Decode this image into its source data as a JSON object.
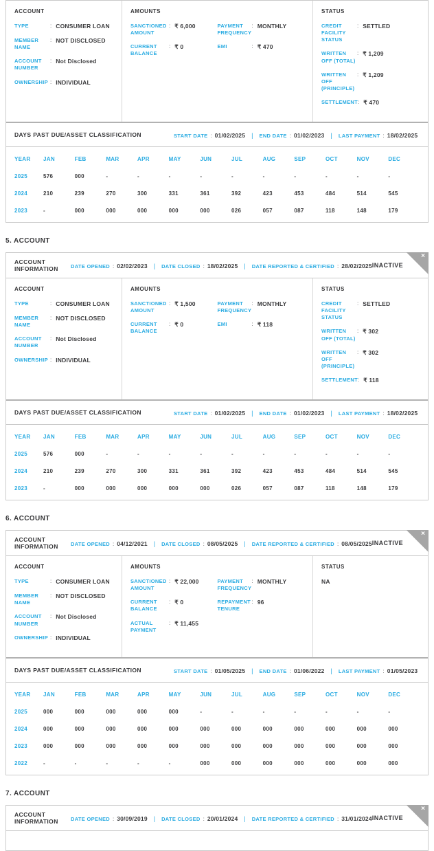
{
  "colors": {
    "accent": "#29abe2",
    "text": "#3b3b3d",
    "ribbon": "#a6a6a6"
  },
  "labels": {
    "account_information": "ACCOUNT INFORMATION",
    "account": "ACCOUNT",
    "amounts": "AMOUNTS",
    "status": "STATUS",
    "dpd_title": "DAYS PAST DUE/ASSET CLASSIFICATION",
    "year": "YEAR",
    "close_icon": "×"
  },
  "months": [
    "JAN",
    "FEB",
    "MAR",
    "APR",
    "MAY",
    "JUN",
    "JUL",
    "AUG",
    "SEP",
    "OCT",
    "NOV",
    "DEC"
  ],
  "cards": [
    {
      "account_fields": [
        {
          "label": "TYPE",
          "value": "CONSUMER LOAN"
        },
        {
          "label": "MEMBER NAME",
          "value": "NOT DISCLOSED"
        },
        {
          "label": "ACCOUNT NUMBER",
          "value": "Not Disclosed"
        },
        {
          "label": "OWNERSHIP",
          "value": "INDIVIDUAL"
        }
      ],
      "amounts_left": [
        {
          "label": "SANCTIONED AMOUNT",
          "value": "₹ 6,000"
        },
        {
          "label": "CURRENT BALANCE",
          "value": "₹ 0"
        }
      ],
      "amounts_right": [
        {
          "label": "PAYMENT FREQUENCY",
          "value": "MONTHLY"
        },
        {
          "label": "EMI",
          "value": "₹ 470"
        }
      ],
      "status_fields": [
        {
          "label": "CREDIT FACILITY STATUS",
          "value": "SETTLED"
        },
        {
          "label": "WRITTEN OFF (TOTAL)",
          "value": "₹ 1,209"
        },
        {
          "label": "WRITTEN OFF (PRINCIPLE)",
          "value": "₹ 1,209"
        },
        {
          "label": "SETTLEMENT",
          "value": "₹ 470"
        }
      ],
      "dpd_dates": [
        {
          "label": "START DATE",
          "value": "01/02/2025"
        },
        {
          "label": "END DATE",
          "value": "01/02/2023"
        },
        {
          "label": "LAST PAYMENT",
          "value": "18/02/2025"
        }
      ],
      "dpd_rows": [
        {
          "year": "2025",
          "values": [
            "576",
            "000",
            "-",
            "-",
            "-",
            "-",
            "-",
            "-",
            "-",
            "-",
            "-",
            "-"
          ]
        },
        {
          "year": "2024",
          "values": [
            "210",
            "239",
            "270",
            "300",
            "331",
            "361",
            "392",
            "423",
            "453",
            "484",
            "514",
            "545"
          ]
        },
        {
          "year": "2023",
          "values": [
            "-",
            "000",
            "000",
            "000",
            "000",
            "000",
            "026",
            "057",
            "087",
            "118",
            "148",
            "179"
          ]
        }
      ]
    },
    {
      "title": "5. ACCOUNT",
      "badge": "INACTIVE",
      "header_dates": [
        {
          "label": "DATE OPENED",
          "value": "02/02/2023"
        },
        {
          "label": "DATE CLOSED",
          "value": "18/02/2025"
        },
        {
          "label": "DATE REPORTED & CERTIFIED",
          "value": "28/02/2025"
        }
      ],
      "account_fields": [
        {
          "label": "TYPE",
          "value": "CONSUMER LOAN"
        },
        {
          "label": "MEMBER NAME",
          "value": "NOT DISCLOSED"
        },
        {
          "label": "ACCOUNT NUMBER",
          "value": "Not Disclosed"
        },
        {
          "label": "OWNERSHIP",
          "value": "INDIVIDUAL"
        }
      ],
      "amounts_left": [
        {
          "label": "SANCTIONED AMOUNT",
          "value": "₹ 1,500"
        },
        {
          "label": "CURRENT BALANCE",
          "value": "₹ 0"
        }
      ],
      "amounts_right": [
        {
          "label": "PAYMENT FREQUENCY",
          "value": "MONTHLY"
        },
        {
          "label": "EMI",
          "value": "₹ 118"
        }
      ],
      "status_fields": [
        {
          "label": "CREDIT FACILITY STATUS",
          "value": "SETTLED"
        },
        {
          "label": "WRITTEN OFF (TOTAL)",
          "value": "₹ 302"
        },
        {
          "label": "WRITTEN OFF (PRINCIPLE)",
          "value": "₹ 302"
        },
        {
          "label": "SETTLEMENT",
          "value": "₹ 118"
        }
      ],
      "dpd_dates": [
        {
          "label": "START DATE",
          "value": "01/02/2025"
        },
        {
          "label": "END DATE",
          "value": "01/02/2023"
        },
        {
          "label": "LAST PAYMENT",
          "value": "18/02/2025"
        }
      ],
      "dpd_rows": [
        {
          "year": "2025",
          "values": [
            "576",
            "000",
            "-",
            "-",
            "-",
            "-",
            "-",
            "-",
            "-",
            "-",
            "-",
            "-"
          ]
        },
        {
          "year": "2024",
          "values": [
            "210",
            "239",
            "270",
            "300",
            "331",
            "361",
            "392",
            "423",
            "453",
            "484",
            "514",
            "545"
          ]
        },
        {
          "year": "2023",
          "values": [
            "-",
            "000",
            "000",
            "000",
            "000",
            "000",
            "026",
            "057",
            "087",
            "118",
            "148",
            "179"
          ]
        }
      ]
    },
    {
      "title": "6. ACCOUNT",
      "badge": "INACTIVE",
      "header_dates": [
        {
          "label": "DATE OPENED",
          "value": "04/12/2021"
        },
        {
          "label": "DATE CLOSED",
          "value": "08/05/2025"
        },
        {
          "label": "DATE REPORTED & CERTIFIED",
          "value": "08/05/2025"
        }
      ],
      "account_fields": [
        {
          "label": "TYPE",
          "value": "CONSUMER LOAN"
        },
        {
          "label": "MEMBER NAME",
          "value": "NOT DISCLOSED"
        },
        {
          "label": "ACCOUNT NUMBER",
          "value": "Not Disclosed"
        },
        {
          "label": "OWNERSHIP",
          "value": "INDIVIDUAL"
        }
      ],
      "amounts_left": [
        {
          "label": "SANCTIONED AMOUNT",
          "value": "₹ 22,000"
        },
        {
          "label": "CURRENT BALANCE",
          "value": "₹ 0"
        },
        {
          "label": "ACTUAL PAYMENT",
          "value": "₹ 11,455"
        }
      ],
      "amounts_right": [
        {
          "label": "PAYMENT FREQUENCY",
          "value": "MONTHLY"
        },
        {
          "label": "REPAYMENT TENURE",
          "value": "96"
        }
      ],
      "status_fields": [
        {
          "value": "NA"
        }
      ],
      "dpd_dates": [
        {
          "label": "START DATE",
          "value": "01/05/2025"
        },
        {
          "label": "END DATE",
          "value": "01/06/2022"
        },
        {
          "label": "LAST PAYMENT",
          "value": "01/05/2023"
        }
      ],
      "dpd_rows": [
        {
          "year": "2025",
          "values": [
            "000",
            "000",
            "000",
            "000",
            "000",
            "-",
            "-",
            "-",
            "-",
            "-",
            "-",
            "-"
          ]
        },
        {
          "year": "2024",
          "values": [
            "000",
            "000",
            "000",
            "000",
            "000",
            "000",
            "000",
            "000",
            "000",
            "000",
            "000",
            "000"
          ]
        },
        {
          "year": "2023",
          "values": [
            "000",
            "000",
            "000",
            "000",
            "000",
            "000",
            "000",
            "000",
            "000",
            "000",
            "000",
            "000"
          ]
        },
        {
          "year": "2022",
          "values": [
            "-",
            "-",
            "-",
            "-",
            "-",
            "000",
            "000",
            "000",
            "000",
            "000",
            "000",
            "000"
          ]
        }
      ]
    },
    {
      "title": "7. ACCOUNT",
      "badge": "INACTIVE",
      "header_dates": [
        {
          "label": "DATE OPENED",
          "value": "30/09/2019"
        },
        {
          "label": "DATE CLOSED",
          "value": "20/01/2024"
        },
        {
          "label": "DATE REPORTED & CERTIFIED",
          "value": "31/01/2024"
        }
      ]
    }
  ]
}
